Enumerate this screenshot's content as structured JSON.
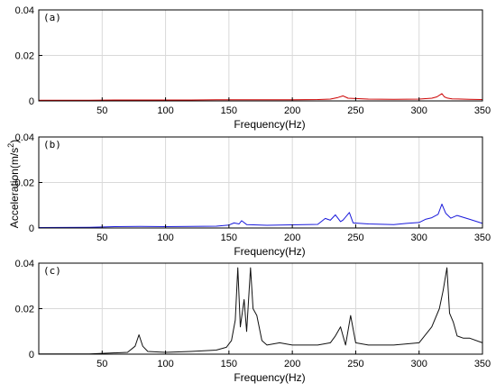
{
  "chart_data": {
    "type": "line",
    "ylabel": "Acceleration(m/s",
    "ylabel_sup": "2",
    "ylabel_close": ")",
    "grid": true,
    "xlim": [
      0,
      350
    ],
    "ylim": [
      0,
      0.04
    ],
    "xticks": [
      "50",
      "100",
      "150",
      "200",
      "250",
      "300",
      "350"
    ],
    "yticks": [
      "0",
      "0.02",
      "0.04"
    ],
    "panels": [
      {
        "label": "(a)",
        "xlabel": "Frequency(Hz)",
        "color": "#cc0000",
        "x": [
          0,
          20,
          40,
          60,
          80,
          100,
          120,
          140,
          160,
          180,
          200,
          220,
          230,
          236,
          240,
          244,
          260,
          280,
          300,
          310,
          314,
          318,
          320,
          322,
          326,
          340,
          350
        ],
        "y": [
          0.0003,
          0.0003,
          0.0003,
          0.0004,
          0.0004,
          0.0004,
          0.0004,
          0.0005,
          0.0005,
          0.0005,
          0.0005,
          0.0006,
          0.0008,
          0.0015,
          0.0022,
          0.0012,
          0.0008,
          0.0007,
          0.0008,
          0.0012,
          0.0018,
          0.0032,
          0.0018,
          0.0013,
          0.0009,
          0.0007,
          0.0006
        ]
      },
      {
        "label": "(b)",
        "xlabel": "Frequency(Hz)",
        "color": "#1a1adb",
        "x": [
          0,
          40,
          60,
          80,
          100,
          120,
          140,
          150,
          154,
          158,
          160,
          164,
          180,
          200,
          220,
          226,
          230,
          234,
          238,
          240,
          245,
          248,
          260,
          280,
          290,
          300,
          305,
          310,
          315,
          318,
          321,
          325,
          330,
          340,
          350
        ],
        "y": [
          0.0002,
          0.0003,
          0.0006,
          0.0007,
          0.0006,
          0.0007,
          0.0008,
          0.0013,
          0.0022,
          0.0018,
          0.0032,
          0.0015,
          0.0012,
          0.0014,
          0.0016,
          0.0042,
          0.0034,
          0.0058,
          0.0028,
          0.0035,
          0.0068,
          0.0022,
          0.0018,
          0.0015,
          0.002,
          0.0024,
          0.0038,
          0.0045,
          0.006,
          0.0105,
          0.0065,
          0.0043,
          0.0055,
          0.0038,
          0.002
        ]
      },
      {
        "label": "(c)",
        "xlabel": "Frequency(Hz)",
        "color": "#111111",
        "x": [
          0,
          40,
          70,
          76,
          79,
          82,
          86,
          100,
          120,
          140,
          148,
          152,
          155,
          157,
          159,
          162,
          164,
          167,
          169,
          172,
          176,
          180,
          190,
          200,
          220,
          230,
          234,
          238,
          242,
          246,
          250,
          260,
          280,
          300,
          310,
          316,
          319,
          322,
          324,
          327,
          330,
          335,
          340,
          350
        ],
        "y": [
          0.0001,
          0.0001,
          0.0008,
          0.0035,
          0.0085,
          0.0035,
          0.0012,
          0.0008,
          0.0012,
          0.0018,
          0.003,
          0.006,
          0.015,
          0.038,
          0.012,
          0.024,
          0.01,
          0.038,
          0.02,
          0.017,
          0.006,
          0.004,
          0.005,
          0.004,
          0.004,
          0.005,
          0.008,
          0.012,
          0.004,
          0.017,
          0.005,
          0.004,
          0.004,
          0.005,
          0.012,
          0.02,
          0.028,
          0.038,
          0.018,
          0.014,
          0.008,
          0.007,
          0.007,
          0.005
        ]
      }
    ]
  }
}
